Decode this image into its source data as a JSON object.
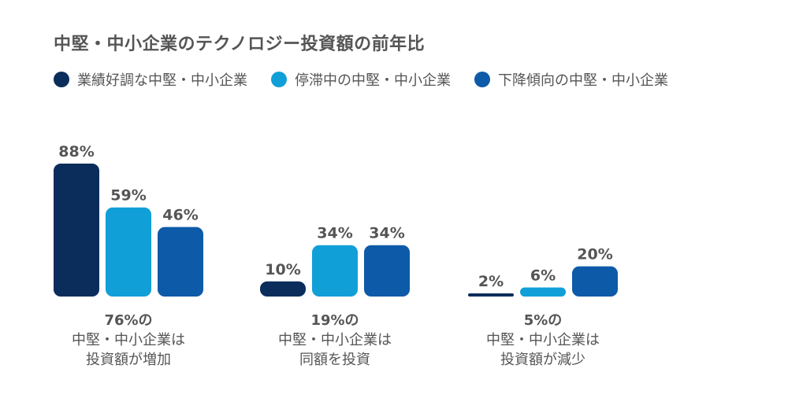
{
  "chart_data": {
    "type": "bar",
    "title": "中堅・中小企業のテクノロジー投資額の前年比",
    "categories": [
      "増加",
      "同額",
      "減少"
    ],
    "series": [
      {
        "name": "業績好調な中堅・中小企業",
        "color": "#0b2d5b",
        "values": [
          88,
          10,
          2
        ]
      },
      {
        "name": "停滞中の中堅・中小企業",
        "color": "#119fd8",
        "values": [
          59,
          34,
          6
        ]
      },
      {
        "name": "下降傾向の中堅・中小企業",
        "color": "#0d5aa8",
        "values": [
          46,
          34,
          20
        ]
      }
    ],
    "data_labels": [
      [
        "88%",
        "59%",
        "46%"
      ],
      [
        "10%",
        "34%",
        "34%"
      ],
      [
        "2%",
        "6%",
        "20%"
      ]
    ],
    "groups": [
      {
        "pct": "76%の",
        "line2": "中堅・中小企業は",
        "line3": "投資額が増加"
      },
      {
        "pct": "19%の",
        "line2": "中堅・中小企業は",
        "line3": "同額を投資"
      },
      {
        "pct": "5%の",
        "line2": "中堅・中小企業は",
        "line3": "投資額が減少"
      }
    ],
    "ylim": [
      0,
      100
    ],
    "grid": false,
    "legend_position": "top-left"
  }
}
